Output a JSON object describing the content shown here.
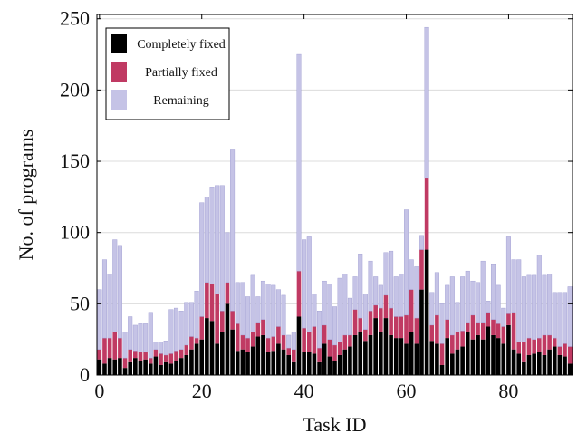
{
  "chart_data": {
    "type": "bar",
    "stacked": true,
    "title": "",
    "xlabel": "Task ID",
    "ylabel": "No. of programs",
    "xlim": [
      -0.5,
      92.5
    ],
    "ylim": [
      0,
      253
    ],
    "xticks": [
      0,
      20,
      40,
      60,
      80
    ],
    "yticks": [
      0,
      50,
      100,
      150,
      200,
      250
    ],
    "grid": "horizontal",
    "legend_position": "top-left",
    "x": [
      0,
      1,
      2,
      3,
      4,
      5,
      6,
      7,
      8,
      9,
      10,
      11,
      12,
      13,
      14,
      15,
      16,
      17,
      18,
      19,
      20,
      21,
      22,
      23,
      24,
      25,
      26,
      27,
      28,
      29,
      30,
      31,
      32,
      33,
      34,
      35,
      36,
      37,
      38,
      39,
      40,
      41,
      42,
      43,
      44,
      45,
      46,
      47,
      48,
      49,
      50,
      51,
      52,
      53,
      54,
      55,
      56,
      57,
      58,
      59,
      60,
      61,
      62,
      63,
      64,
      65,
      66,
      67,
      68,
      69,
      70,
      71,
      72,
      73,
      74,
      75,
      76,
      77,
      78,
      79,
      80,
      81,
      82,
      83,
      84,
      85,
      86,
      87,
      88,
      89,
      90,
      91,
      92
    ],
    "series": [
      {
        "name": "Completely fixed",
        "color": "#000000",
        "values": [
          11,
          8,
          12,
          11,
          12,
          5,
          9,
          12,
          10,
          11,
          8,
          13,
          7,
          9,
          8,
          10,
          12,
          14,
          18,
          22,
          25,
          40,
          38,
          22,
          30,
          50,
          32,
          17,
          18,
          16,
          20,
          27,
          28,
          16,
          17,
          22,
          18,
          14,
          9,
          41,
          16,
          16,
          15,
          9,
          22,
          13,
          10,
          14,
          18,
          20,
          28,
          30,
          24,
          28,
          40,
          30,
          40,
          28,
          26,
          26,
          22,
          30,
          22,
          60,
          88,
          24,
          22,
          7,
          26,
          15,
          18,
          20,
          30,
          25,
          28,
          25,
          34,
          28,
          26,
          22,
          35,
          18,
          15,
          9,
          14,
          15,
          16,
          14,
          18,
          20,
          14,
          13,
          8
        ]
      },
      {
        "name": "Partially fixed",
        "color": "#c03a63",
        "values": [
          7,
          18,
          14,
          19,
          14,
          7,
          9,
          5,
          6,
          5,
          4,
          5,
          8,
          5,
          7,
          7,
          6,
          7,
          9,
          4,
          16,
          25,
          26,
          35,
          15,
          15,
          13,
          19,
          10,
          10,
          10,
          10,
          11,
          10,
          10,
          12,
          10,
          5,
          9,
          32,
          17,
          14,
          19,
          10,
          13,
          12,
          11,
          9,
          10,
          8,
          18,
          10,
          8,
          17,
          9,
          17,
          16,
          19,
          15,
          15,
          20,
          30,
          18,
          28,
          50,
          11,
          20,
          15,
          13,
          13,
          12,
          11,
          7,
          17,
          9,
          12,
          10,
          11,
          10,
          12,
          8,
          26,
          8,
          14,
          12,
          10,
          10,
          14,
          10,
          6,
          6,
          9,
          12
        ]
      },
      {
        "name": "Remaining",
        "color": "#c5c3e6",
        "values": [
          42,
          55,
          45,
          65,
          65,
          18,
          23,
          18,
          20,
          20,
          32,
          5,
          8,
          10,
          31,
          30,
          27,
          30,
          24,
          33,
          80,
          60,
          68,
          76,
          88,
          35,
          113,
          29,
          37,
          29,
          40,
          18,
          27,
          38,
          36,
          26,
          28,
          9,
          12,
          152,
          62,
          67,
          23,
          26,
          31,
          39,
          27,
          45,
          43,
          26,
          23,
          45,
          25,
          35,
          20,
          16,
          30,
          40,
          28,
          30,
          74,
          21,
          36,
          10,
          106,
          23,
          30,
          28,
          24,
          41,
          21,
          38,
          36,
          24,
          28,
          43,
          8,
          39,
          27,
          13,
          54,
          37,
          58,
          46,
          44,
          45,
          58,
          42,
          43,
          32,
          38,
          36,
          42
        ]
      }
    ]
  }
}
